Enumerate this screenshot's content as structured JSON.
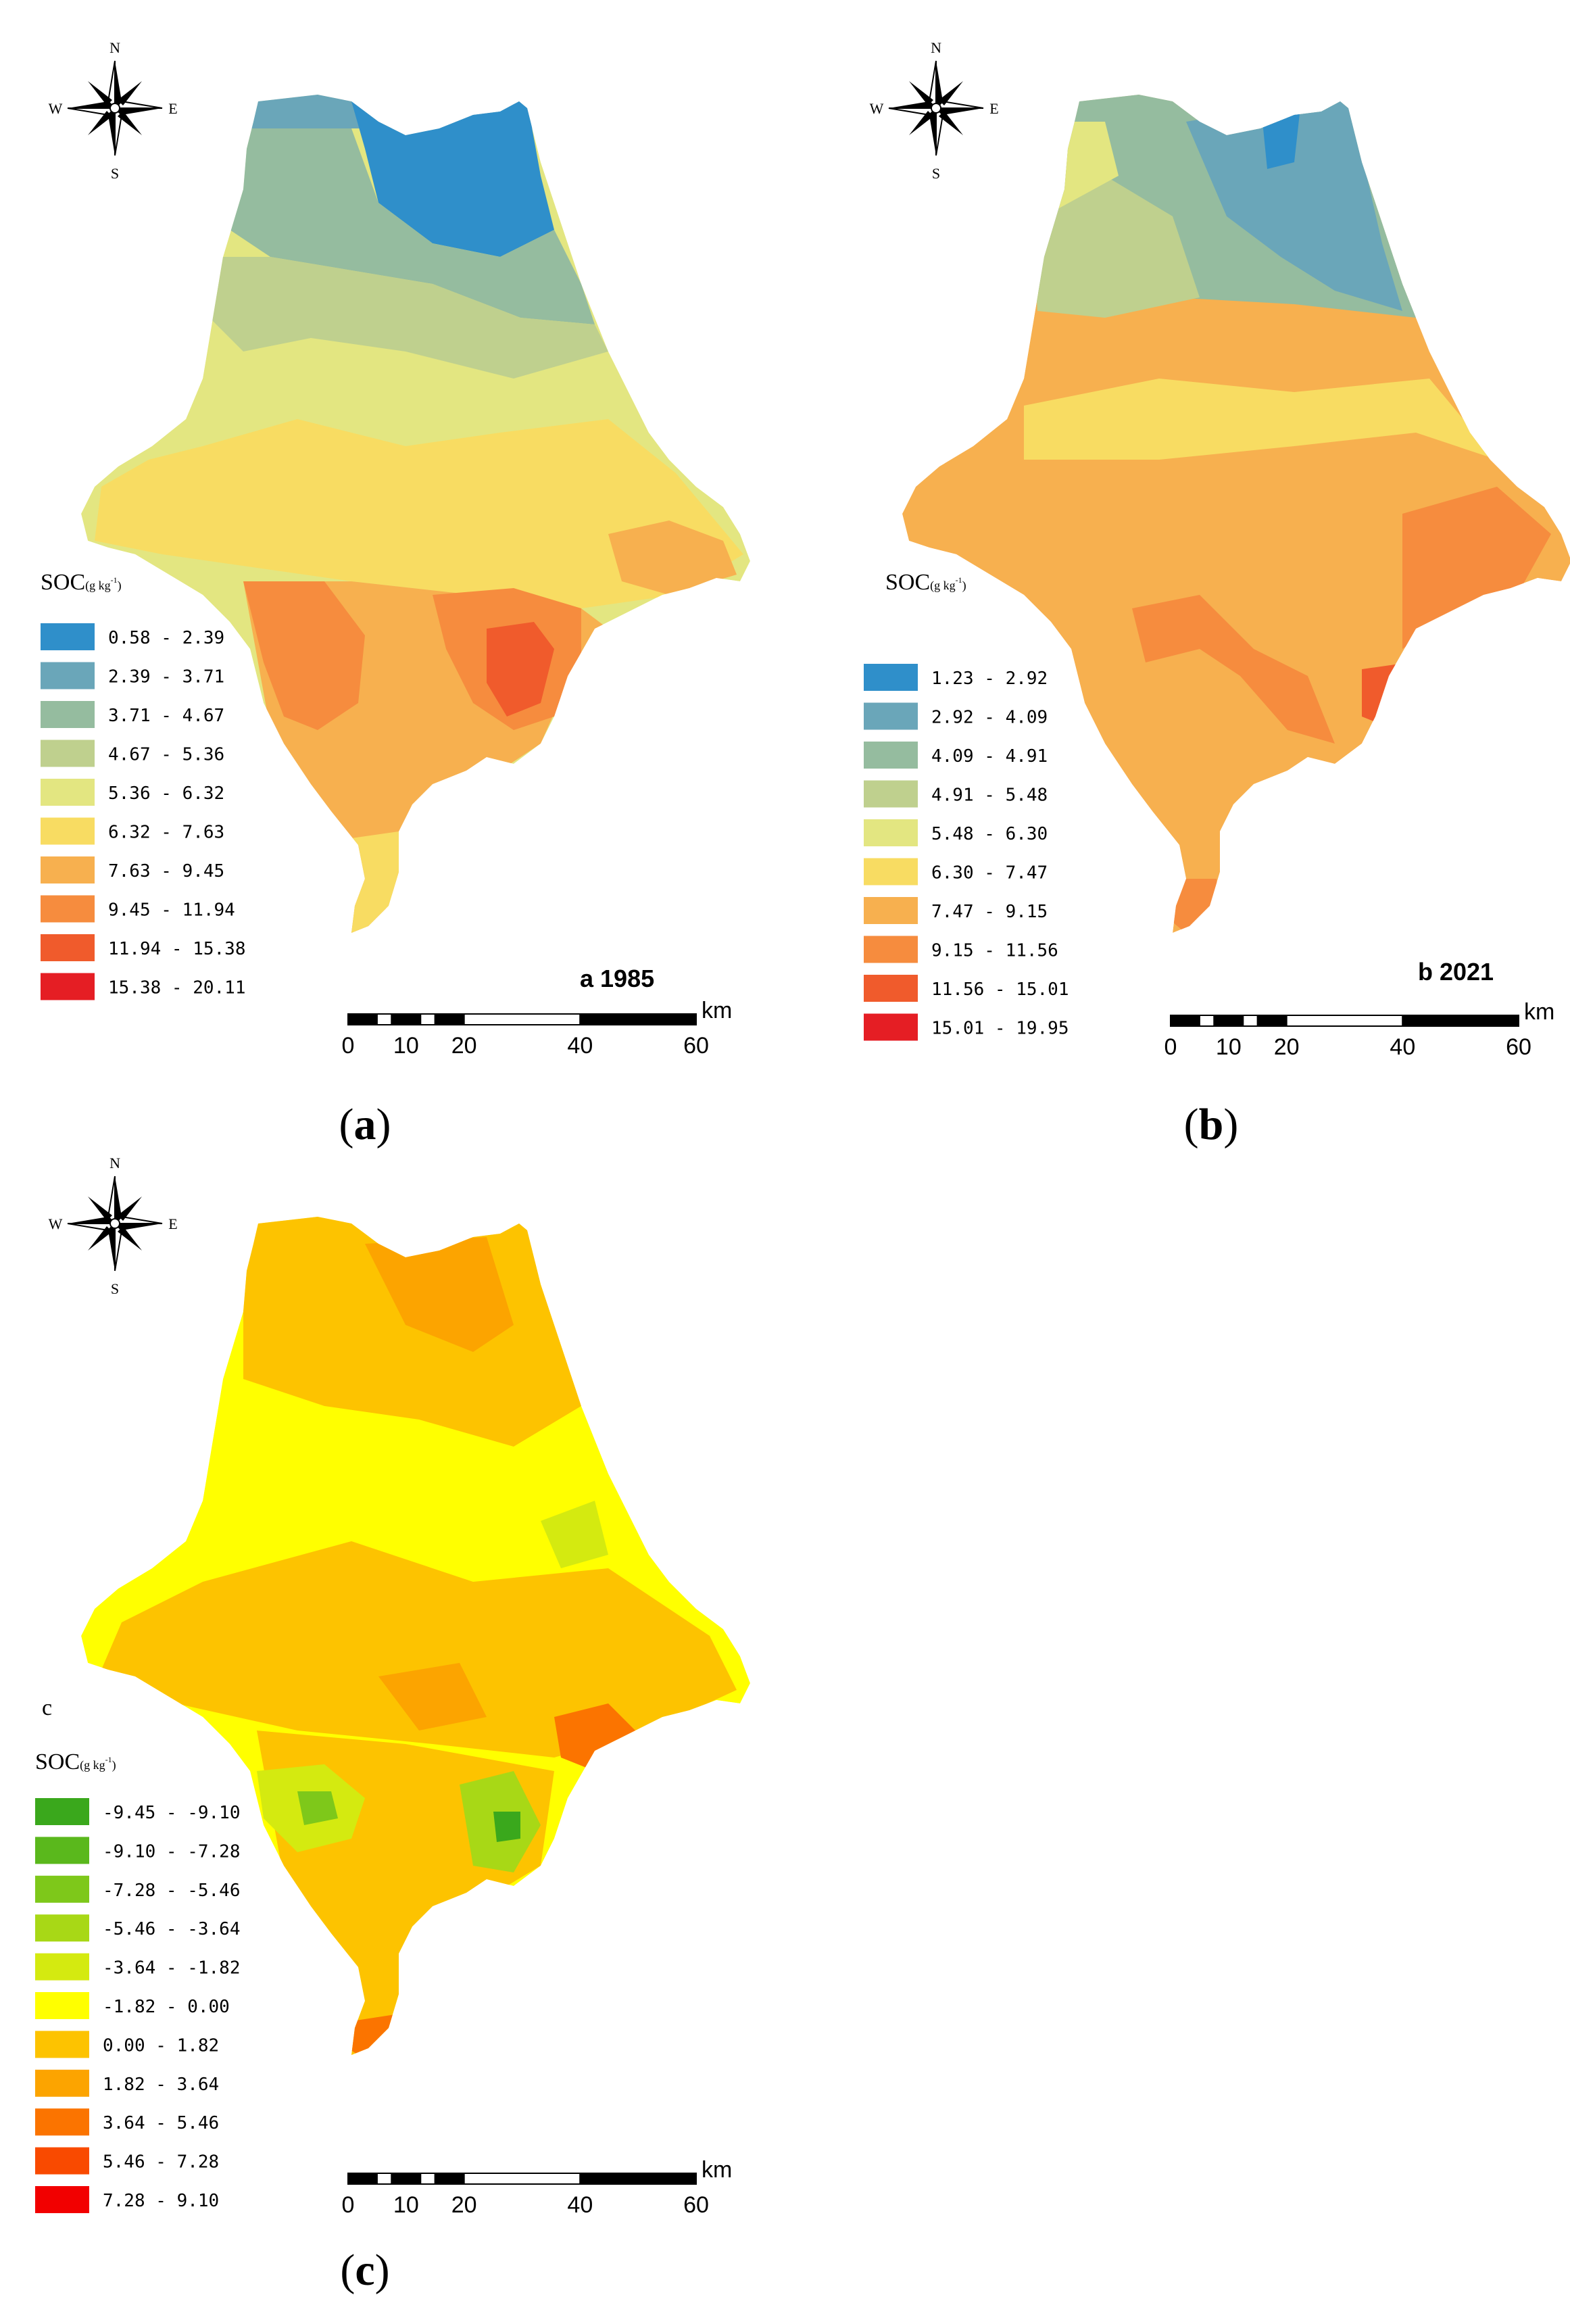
{
  "compass": {
    "n": "N",
    "s": "S",
    "e": "E",
    "w": "W"
  },
  "scale_bar": {
    "unit": "km",
    "ticks": [
      "0",
      "10",
      "20",
      "40",
      "60"
    ]
  },
  "legend_title": "SOC",
  "legend_unit": "(g kg",
  "legend_unit_sup": "-1",
  "legend_unit_close": ")",
  "panels": [
    {
      "id": "a",
      "map_label": "a  1985",
      "caption": "a",
      "legend": [
        {
          "range": "0.58 - 2.39",
          "color": "#2f8fca"
        },
        {
          "range": "2.39 - 3.71",
          "color": "#6aa6b9"
        },
        {
          "range": "3.71 - 4.67",
          "color": "#95bc9f"
        },
        {
          "range": "4.67 - 5.36",
          "color": "#bfd08e"
        },
        {
          "range": "5.36 - 6.32",
          "color": "#e3e681"
        },
        {
          "range": "6.32 - 7.63",
          "color": "#f8dc62"
        },
        {
          "range": "7.63 - 9.45",
          "color": "#f7b04f"
        },
        {
          "range": "9.45 - 11.94",
          "color": "#f68c3e"
        },
        {
          "range": "11.94 - 15.38",
          "color": "#f05b2c"
        },
        {
          "range": "15.38 - 20.11",
          "color": "#e51e24"
        }
      ]
    },
    {
      "id": "b",
      "map_label": "b  2021",
      "caption": "b",
      "legend": [
        {
          "range": "1.23 - 2.92",
          "color": "#2f8fca"
        },
        {
          "range": "2.92 - 4.09",
          "color": "#6aa6b9"
        },
        {
          "range": "4.09 - 4.91",
          "color": "#95bc9f"
        },
        {
          "range": "4.91 - 5.48",
          "color": "#bfd08e"
        },
        {
          "range": "5.48 - 6.30",
          "color": "#e3e681"
        },
        {
          "range": "6.30 - 7.47",
          "color": "#f8dc62"
        },
        {
          "range": "7.47 - 9.15",
          "color": "#f7b04f"
        },
        {
          "range": "9.15 - 11.56",
          "color": "#f68c3e"
        },
        {
          "range": "11.56 - 15.01",
          "color": "#f05b2c"
        },
        {
          "range": "15.01 - 19.95",
          "color": "#e51e24"
        }
      ]
    },
    {
      "id": "c",
      "map_label": "c",
      "caption": "c",
      "legend": [
        {
          "range": "-9.45 - -9.10",
          "color": "#3aa81c"
        },
        {
          "range": "-9.10 - -7.28",
          "color": "#5ab81c"
        },
        {
          "range": "-7.28 - -5.46",
          "color": "#7ec81a"
        },
        {
          "range": "-5.46 - -3.64",
          "color": "#a8d816"
        },
        {
          "range": "-3.64 - -1.82",
          "color": "#d4ea10"
        },
        {
          "range": "-1.82 - 0.00",
          "color": "#ffff00"
        },
        {
          "range": "0.00 - 1.82",
          "color": "#fdc300"
        },
        {
          "range": "1.82 - 3.64",
          "color": "#fca400"
        },
        {
          "range": "3.64 - 5.46",
          "color": "#fb7400"
        },
        {
          "range": "5.46 - 7.28",
          "color": "#f94a00"
        },
        {
          "range": "7.28 - 9.10",
          "color": "#f20000"
        }
      ]
    }
  ]
}
